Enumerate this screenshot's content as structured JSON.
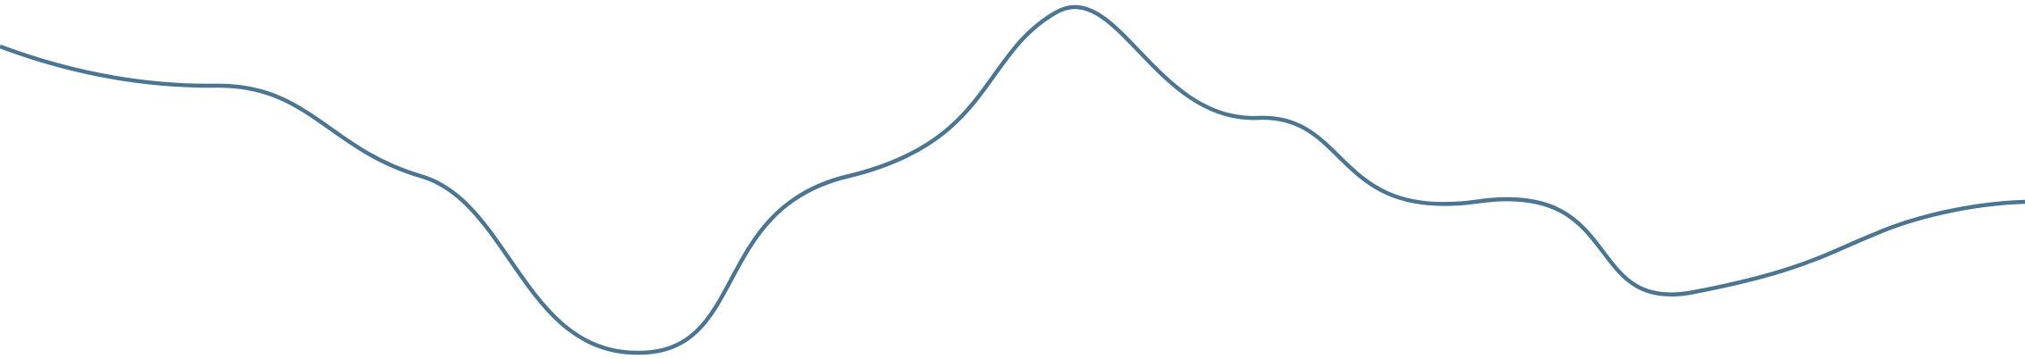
{
  "decoration": {
    "kind": "decorative-wave-divider",
    "stroke_color": "#4c7591",
    "background_color": "#ffffff"
  }
}
